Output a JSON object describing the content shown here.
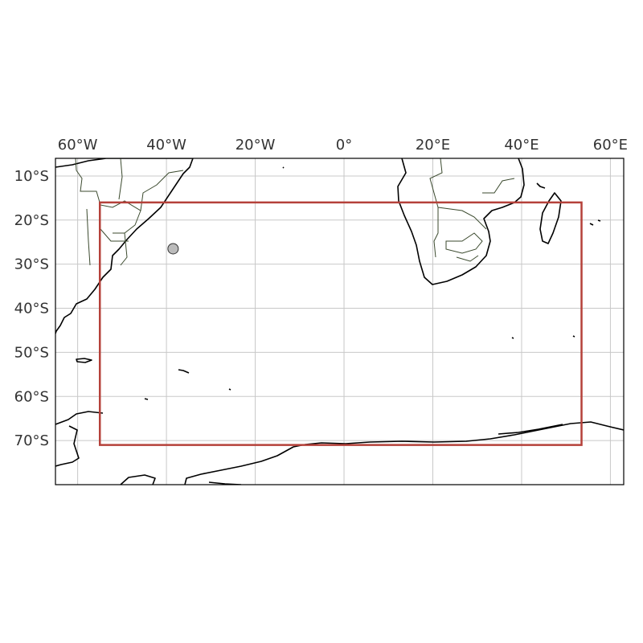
{
  "map": {
    "extent": {
      "lon_min": -65,
      "lon_max": 63,
      "lat_min": -80,
      "lat_max": -6
    },
    "xticks": [
      {
        "lon": -60,
        "label": "60°W"
      },
      {
        "lon": -40,
        "label": "40°W"
      },
      {
        "lon": -20,
        "label": "20°W"
      },
      {
        "lon": 0,
        "label": "0°"
      },
      {
        "lon": 20,
        "label": "20°E"
      },
      {
        "lon": 40,
        "label": "40°E"
      },
      {
        "lon": 60,
        "label": "60°E"
      }
    ],
    "yticks": [
      {
        "lat": -10,
        "label": "10°S"
      },
      {
        "lat": -20,
        "label": "20°S"
      },
      {
        "lat": -30,
        "label": "30°S"
      },
      {
        "lat": -40,
        "label": "40°S"
      },
      {
        "lat": -50,
        "label": "50°S"
      },
      {
        "lat": -60,
        "label": "60°S"
      },
      {
        "lat": -70,
        "label": "70°S"
      }
    ],
    "region_box": {
      "lon_min": -55,
      "lon_max": 53.5,
      "lat_min": -71,
      "lat_max": -16,
      "color": "#b5413a"
    },
    "marker": {
      "lon": -38.5,
      "lat": -26.5,
      "color": "#bbbbbb"
    },
    "gridlines": true,
    "coastline_color": "#000000",
    "border_color": "#3b4a2e"
  }
}
